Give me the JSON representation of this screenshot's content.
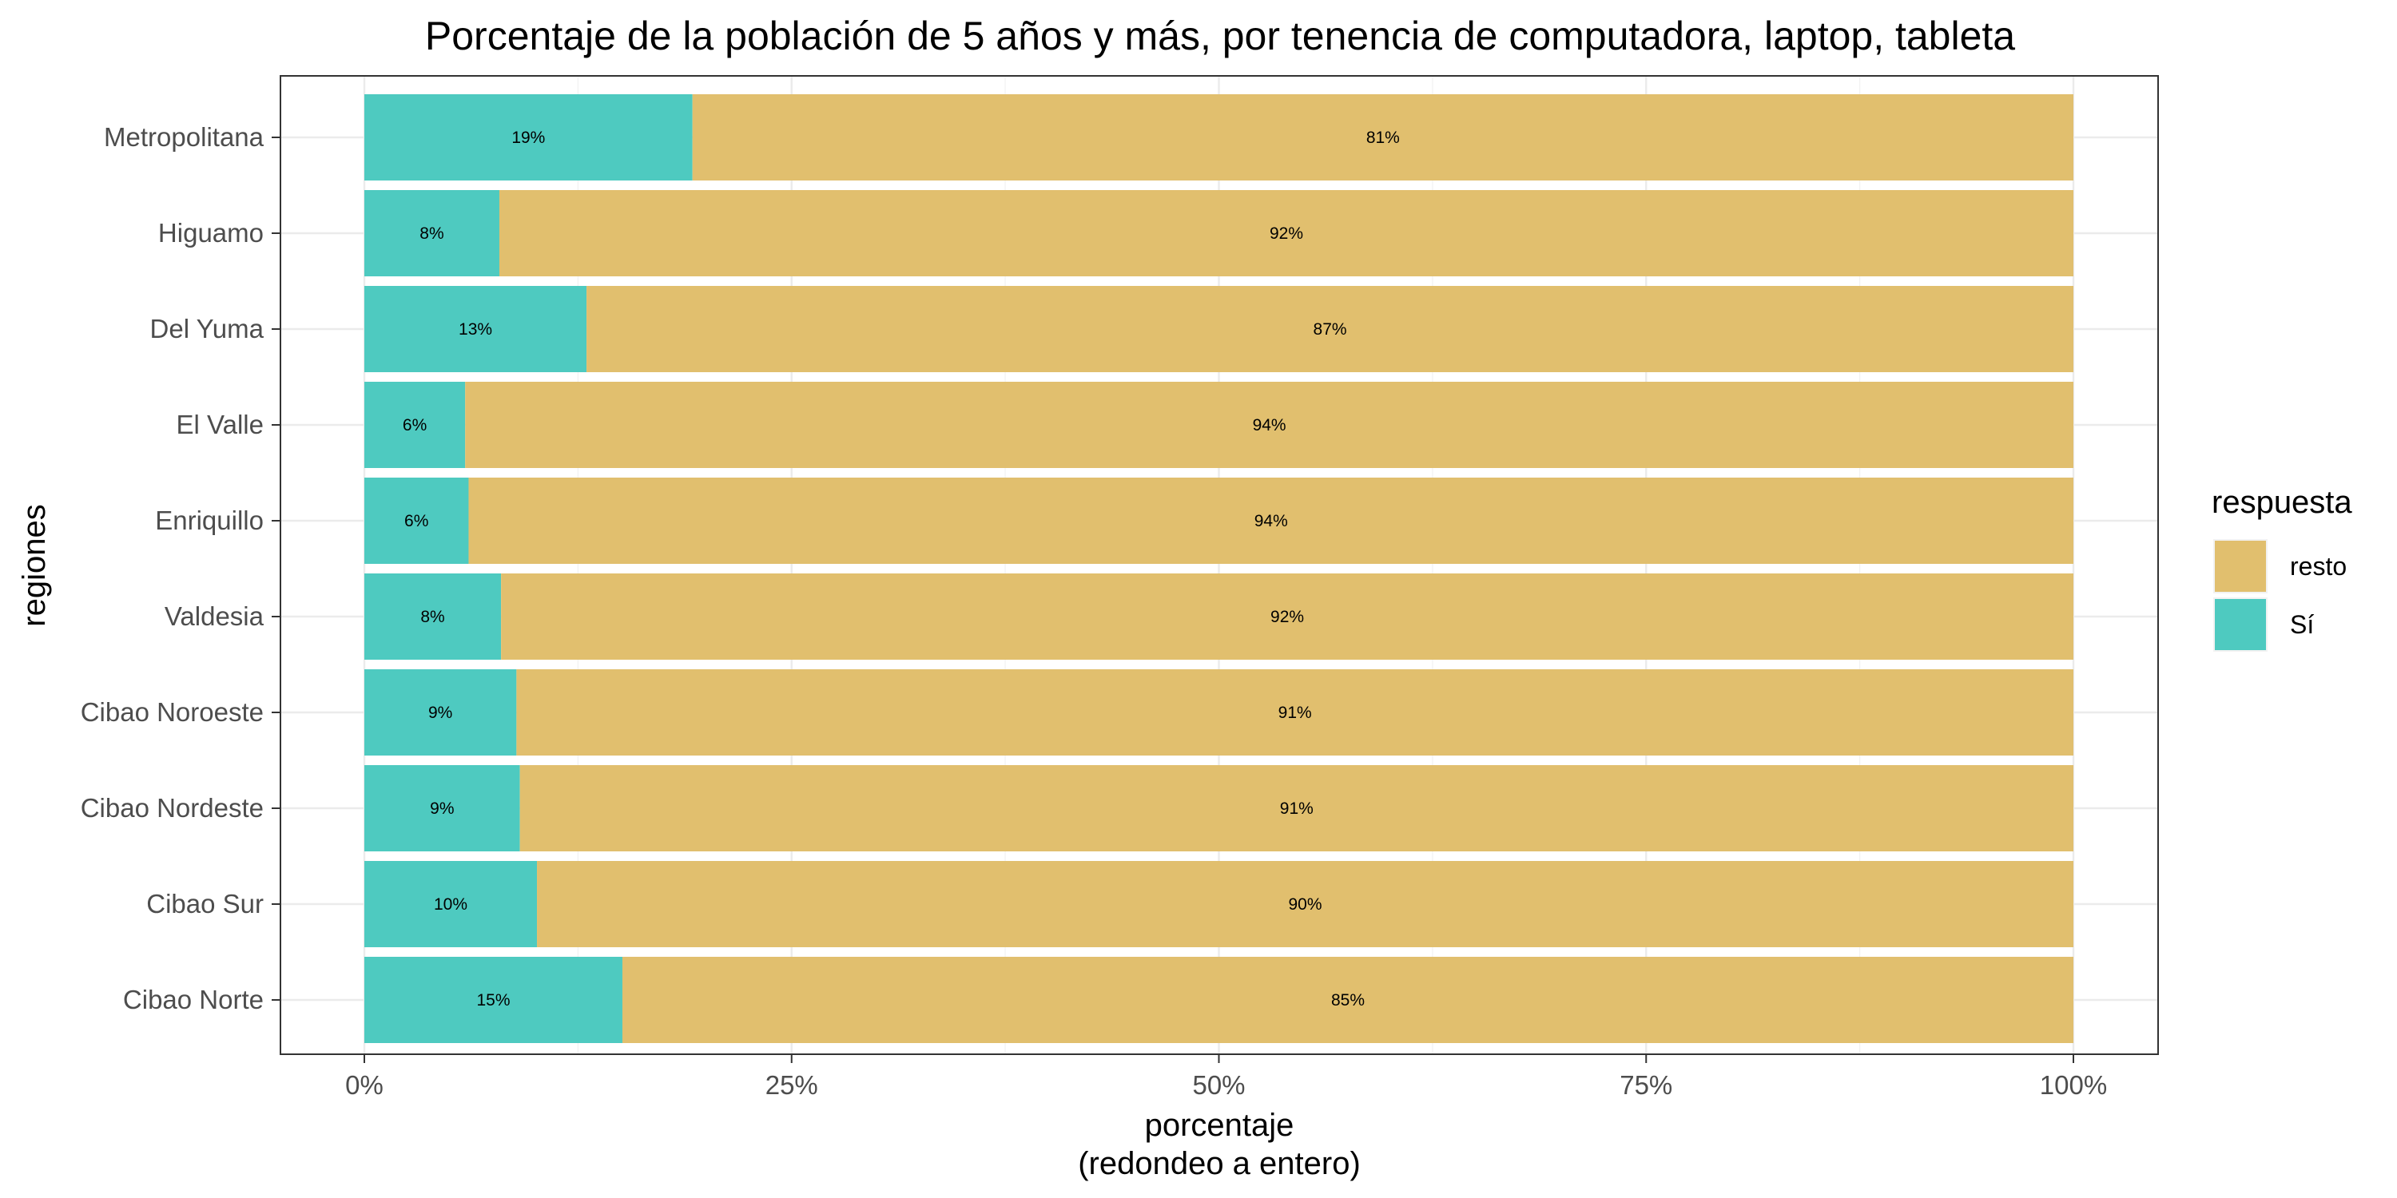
{
  "chart_data": {
    "type": "bar",
    "orientation": "horizontal",
    "stacked": true,
    "title": "Porcentaje de la población de 5 años y más, por tenencia de computadora, laptop, tableta",
    "xlabel": "porcentaje",
    "xlabel_sub": "(redondeo a entero)",
    "ylabel": "regiones",
    "xlim": [
      0,
      1
    ],
    "xticks": [
      {
        "value": 0,
        "label": "0%"
      },
      {
        "value": 0.25,
        "label": "25%"
      },
      {
        "value": 0.5,
        "label": "50%"
      },
      {
        "value": 0.75,
        "label": "75%"
      },
      {
        "value": 1,
        "label": "100%"
      }
    ],
    "grid": true,
    "categories": [
      "Metropolitana",
      "Higuamo",
      "Del Yuma",
      "El Valle",
      "Enriquillo",
      "Valdesia",
      "Cibao Noroeste",
      "Cibao Nordeste",
      "Cibao Sur",
      "Cibao Norte"
    ],
    "series": [
      {
        "name": "Sí",
        "color": "#4ECAC0",
        "values": [
          0.192,
          0.079,
          0.13,
          0.059,
          0.061,
          0.08,
          0.089,
          0.091,
          0.101,
          0.151
        ],
        "labels": [
          "19%",
          "8%",
          "13%",
          "6%",
          "6%",
          "8%",
          "9%",
          "9%",
          "10%",
          "15%"
        ]
      },
      {
        "name": "resto",
        "color": "#E1BF6E",
        "values": [
          0.808,
          0.921,
          0.87,
          0.941,
          0.939,
          0.92,
          0.911,
          0.909,
          0.899,
          0.849
        ],
        "labels": [
          "81%",
          "92%",
          "87%",
          "94%",
          "94%",
          "92%",
          "91%",
          "91%",
          "90%",
          "85%"
        ]
      }
    ],
    "legend": {
      "title": "respuesta",
      "position": "right",
      "entries": [
        {
          "label": "resto",
          "color": "#E1BF6E"
        },
        {
          "label": "Sí",
          "color": "#4ECAC0"
        }
      ]
    }
  }
}
